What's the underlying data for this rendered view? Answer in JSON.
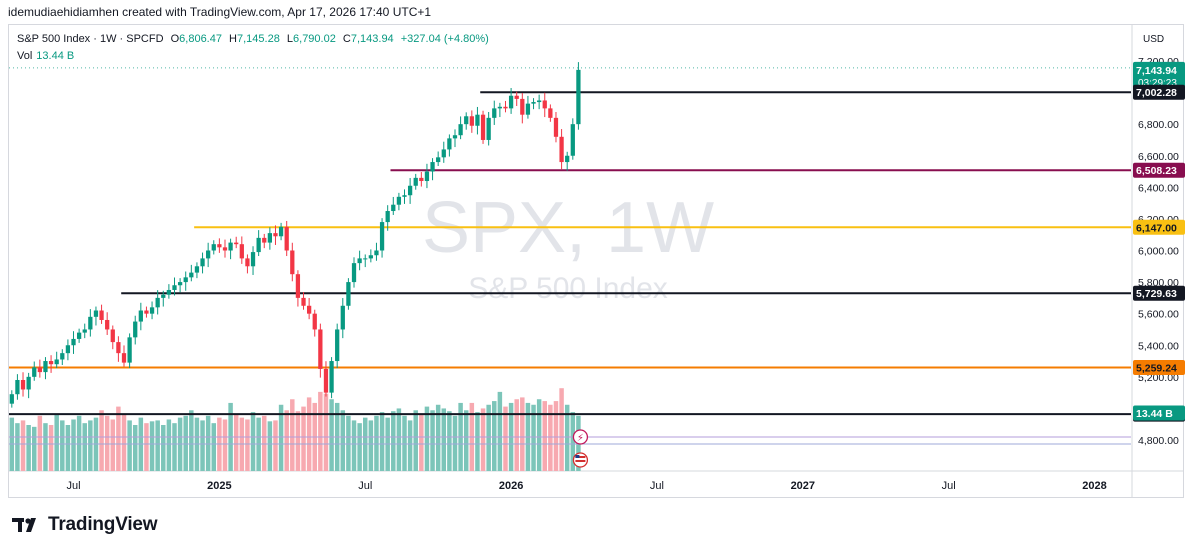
{
  "header": {
    "creator_line": "idemudiaehidiamhen created with TradingView.com, Apr 17, 2026 17:40 UTC+1"
  },
  "legend": {
    "symbol": "S&P 500 Index · 1W · SPCFD",
    "open_label": "O",
    "open": "6,806.47",
    "high_label": "H",
    "high": "7,145.28",
    "low_label": "L",
    "low": "6,790.02",
    "close_label": "C",
    "close": "7,143.94",
    "change": "+327.04 (+4.80%)",
    "vol_label": "Vol",
    "vol": "13.44 B"
  },
  "currency": "USD",
  "watermark": {
    "main": "SPX, 1W",
    "sub": "S&P 500 Index"
  },
  "footer": {
    "brand": "TradingView"
  },
  "colors": {
    "up": "#089981",
    "down": "#f23645",
    "vol_up": "#7cc5b9",
    "vol_down": "#f7a9b0",
    "black_level": "#131722",
    "maroon_level": "#880e4f",
    "yellow_level": "#f9c012",
    "orange_level": "#f57c00"
  },
  "chart_data": {
    "type": "candlestick",
    "title": "S&P 500 Index, 1W",
    "ylim": [
      4700,
      7260
    ],
    "y_ticks": [
      4800,
      5000,
      5200,
      5400,
      5600,
      5800,
      6000,
      6200,
      6400,
      6600,
      6800,
      7000,
      7200
    ],
    "y_tick_labels": [
      "4,800.00",
      "5,000.00",
      "5,200.00",
      "5,400.00",
      "5,600.00",
      "5,800.00",
      "6,000.00",
      "6,200.00",
      "6,400.00",
      "6,600.00",
      "6,800.00",
      "7,000.00",
      "7,200.00"
    ],
    "x_tick_labels": [
      "Jul",
      "2025",
      "Jul",
      "2026",
      "Jul",
      "2027",
      "Jul",
      "2028"
    ],
    "x_tick_weeks": [
      11,
      37,
      63,
      89,
      115,
      141,
      167,
      193
    ],
    "weeks_total": 200,
    "levels": [
      {
        "value": 7002.28,
        "label": "7,002.28",
        "color": "black",
        "start_week": 84
      },
      {
        "value": 6508.23,
        "label": "6,508.23",
        "color": "maroon",
        "start_week": 68
      },
      {
        "value": 6147.0,
        "label": "6,147.00",
        "color": "yellow",
        "start_week": 33
      },
      {
        "value": 5729.63,
        "label": "5,729.63",
        "color": "black",
        "start_week": 20
      },
      {
        "value": 5259.24,
        "label": "5,259.24",
        "color": "orange",
        "start_week": 0
      },
      {
        "value": 4963.93,
        "label": "4,963.93",
        "color": "black",
        "start_week": 0
      }
    ],
    "last_price": {
      "value": 7143.94,
      "label": "7,143.94",
      "countdown": "03:29:23"
    },
    "volume_last_label": "13.44 B",
    "closes": [
      5090,
      5180,
      5120,
      5200,
      5260,
      5230,
      5300,
      5280,
      5310,
      5350,
      5400,
      5440,
      5480,
      5500,
      5580,
      5620,
      5560,
      5500,
      5420,
      5350,
      5290,
      5450,
      5550,
      5620,
      5600,
      5640,
      5700,
      5720,
      5750,
      5780,
      5800,
      5830,
      5860,
      5900,
      5950,
      6000,
      6040,
      6020,
      6000,
      6050,
      6040,
      5950,
      5900,
      5990,
      6080,
      6050,
      6110,
      6090,
      6150,
      6000,
      5850,
      5700,
      5650,
      5600,
      5500,
      5250,
      5100,
      5300,
      5500,
      5650,
      5800,
      5920,
      5950,
      5950,
      5970,
      6000,
      6180,
      6250,
      6290,
      6340,
      6350,
      6410,
      6460,
      6440,
      6500,
      6560,
      6590,
      6640,
      6710,
      6730,
      6800,
      6850,
      6790,
      6860,
      6700,
      6840,
      6900,
      6910,
      6900,
      6980,
      6960,
      6860,
      6930,
      6940,
      6950,
      6900,
      6840,
      6720,
      6560,
      6600,
      6800,
      7143.94
    ],
    "volumes": [
      0.58,
      0.52,
      0.55,
      0.5,
      0.48,
      0.6,
      0.52,
      0.5,
      0.62,
      0.55,
      0.5,
      0.56,
      0.6,
      0.52,
      0.55,
      0.58,
      0.66,
      0.6,
      0.56,
      0.7,
      0.62,
      0.55,
      0.5,
      0.58,
      0.52,
      0.54,
      0.55,
      0.5,
      0.56,
      0.52,
      0.58,
      0.6,
      0.66,
      0.58,
      0.55,
      0.6,
      0.52,
      0.58,
      0.56,
      0.74,
      0.62,
      0.58,
      0.56,
      0.64,
      0.58,
      0.6,
      0.54,
      0.55,
      0.72,
      0.66,
      0.78,
      0.65,
      0.7,
      0.8,
      0.74,
      0.86,
      0.84,
      0.78,
      0.74,
      0.66,
      0.6,
      0.55,
      0.52,
      0.58,
      0.55,
      0.6,
      0.64,
      0.58,
      0.65,
      0.68,
      0.6,
      0.55,
      0.66,
      0.62,
      0.7,
      0.66,
      0.72,
      0.68,
      0.65,
      0.6,
      0.74,
      0.66,
      0.74,
      0.64,
      0.68,
      0.72,
      0.76,
      0.86,
      0.7,
      0.74,
      0.78,
      0.8,
      0.74,
      0.72,
      0.78,
      0.76,
      0.72,
      0.76,
      0.9,
      0.72,
      0.64,
      0.6
    ]
  }
}
